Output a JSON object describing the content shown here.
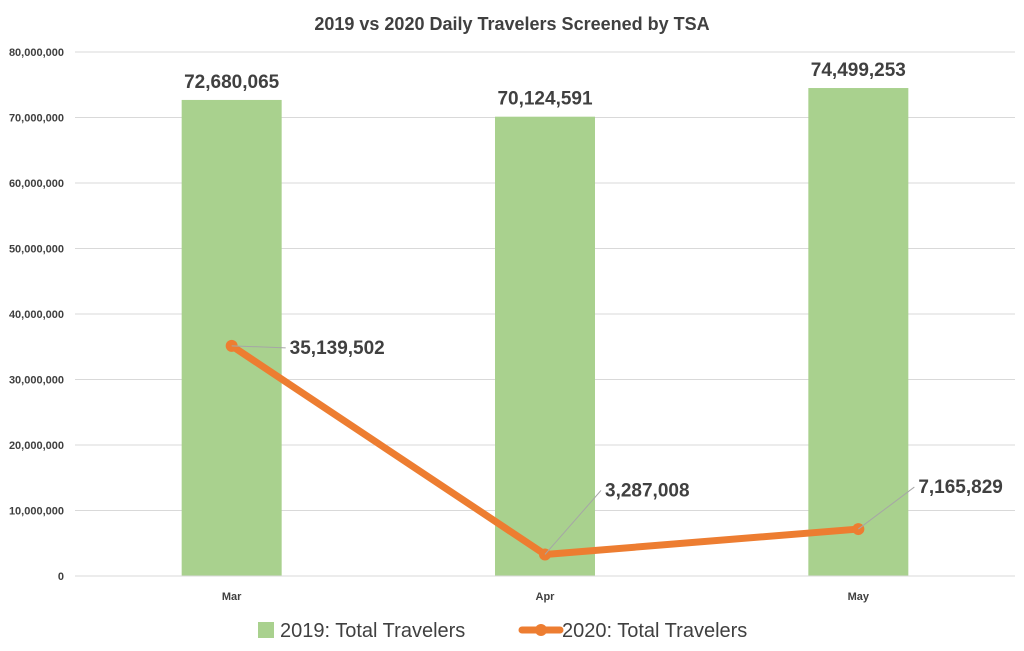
{
  "chart_data": {
    "type": "bar",
    "title": "2019 vs 2020 Daily Travelers Screened by TSA",
    "categories": [
      "Mar",
      "Apr",
      "May"
    ],
    "ylim": [
      0,
      80000000
    ],
    "yticks": [
      0,
      10000000,
      20000000,
      30000000,
      40000000,
      50000000,
      60000000,
      70000000,
      80000000
    ],
    "ytick_labels": [
      "0",
      "10,000,000",
      "20,000,000",
      "30,000,000",
      "40,000,000",
      "50,000,000",
      "60,000,000",
      "70,000,000",
      "80,000,000"
    ],
    "grid": true,
    "legend_position": "bottom",
    "series": [
      {
        "name": "2019: Total Travelers",
        "type": "bar",
        "color": "#a9d18e",
        "values": [
          72680065,
          70124591,
          74499253
        ],
        "labels": [
          "72,680,065",
          "70,124,591",
          "74,499,253"
        ]
      },
      {
        "name": "2020: Total Travelers",
        "type": "line",
        "color": "#ed7d31",
        "values": [
          35139502,
          3287008,
          7165829
        ],
        "labels": [
          "35,139,502",
          "3,287,008",
          "7,165,829"
        ]
      }
    ]
  }
}
